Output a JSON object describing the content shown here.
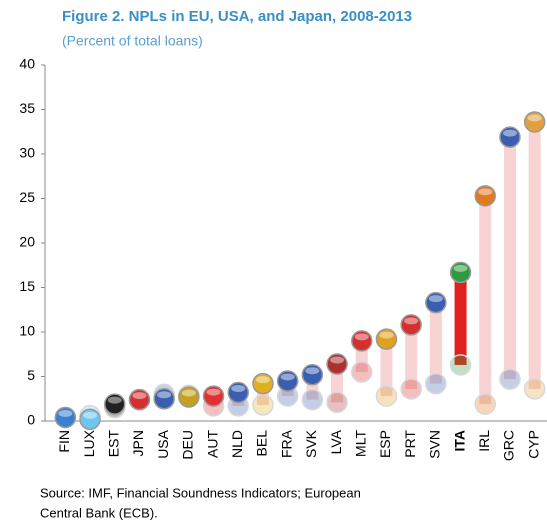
{
  "chart_data": {
    "type": "dumbbell",
    "title": "Figure 2. NPLs in EU, USA, and Japan, 2008-2013",
    "subtitle": "(Percent of total loans)",
    "source": [
      "Source: IMF, Financial Soundness Indicators; European",
      "Central Bank (ECB)."
    ],
    "categories": [
      "FIN",
      "LUX",
      "EST",
      "JPN",
      "USA",
      "DEU",
      "AUT",
      "NLD",
      "BEL",
      "FRA",
      "SVK",
      "LVA",
      "MLT",
      "ESP",
      "PRT",
      "SVN",
      "ITA",
      "IRL",
      "GRC",
      "CYP"
    ],
    "series": [
      {
        "values": [
          0.4,
          0.6,
          1.5,
          2.4,
          3.0,
          2.9,
          1.7,
          1.7,
          1.8,
          2.8,
          2.4,
          2.1,
          5.5,
          2.8,
          3.6,
          4.2,
          6.3,
          1.9,
          4.7,
          3.6
        ],
        "color": "#d8d8d8"
      },
      {
        "values": [
          0.4,
          0.2,
          1.9,
          2.4,
          2.5,
          2.7,
          2.8,
          3.2,
          4.2,
          4.5,
          5.2,
          6.4,
          9.0,
          9.2,
          10.8,
          13.3,
          16.7,
          25.3,
          31.9,
          33.6
        ],
        "color": "#9a9a9a"
      }
    ],
    "point_colors": [
      "#3a7fd0",
      "#6cc6ee",
      "#222222",
      "#d62f2f",
      "#3a5fb0",
      "#c8a020",
      "#e03030",
      "#3a5fb0",
      "#e0b020",
      "#3a5fb0",
      "#3a5fb0",
      "#b03030",
      "#d62f2f",
      "#e0a020",
      "#d62f2f",
      "#3a5fb0",
      "#2e9a40",
      "#e07a20",
      "#3a5fb0",
      "#e0a040"
    ],
    "bar_color": "#f7d3d3",
    "highlight_color": "#e21f1f",
    "bar_colors": [
      "#f7d3d3",
      "#f7d3d3",
      "#f7d3d3",
      "#f7d3d3",
      "#f7d3d3",
      "#f7d3d3",
      "#f7d3d3",
      "#f7d3d3",
      "#f7d3d3",
      "#f7d3d3",
      "#f7d3d3",
      "#f7d3d3",
      "#f7d3d3",
      "#f7d3d3",
      "#f7d3d3",
      "#f7d3d3",
      "#e21f1f",
      "#f7d3d3",
      "#f7d3d3",
      "#f7d3d3"
    ],
    "ylim": [
      0,
      40
    ],
    "yticks": [
      0,
      5,
      10,
      15,
      20,
      25,
      30,
      35,
      40
    ],
    "grid": false
  }
}
